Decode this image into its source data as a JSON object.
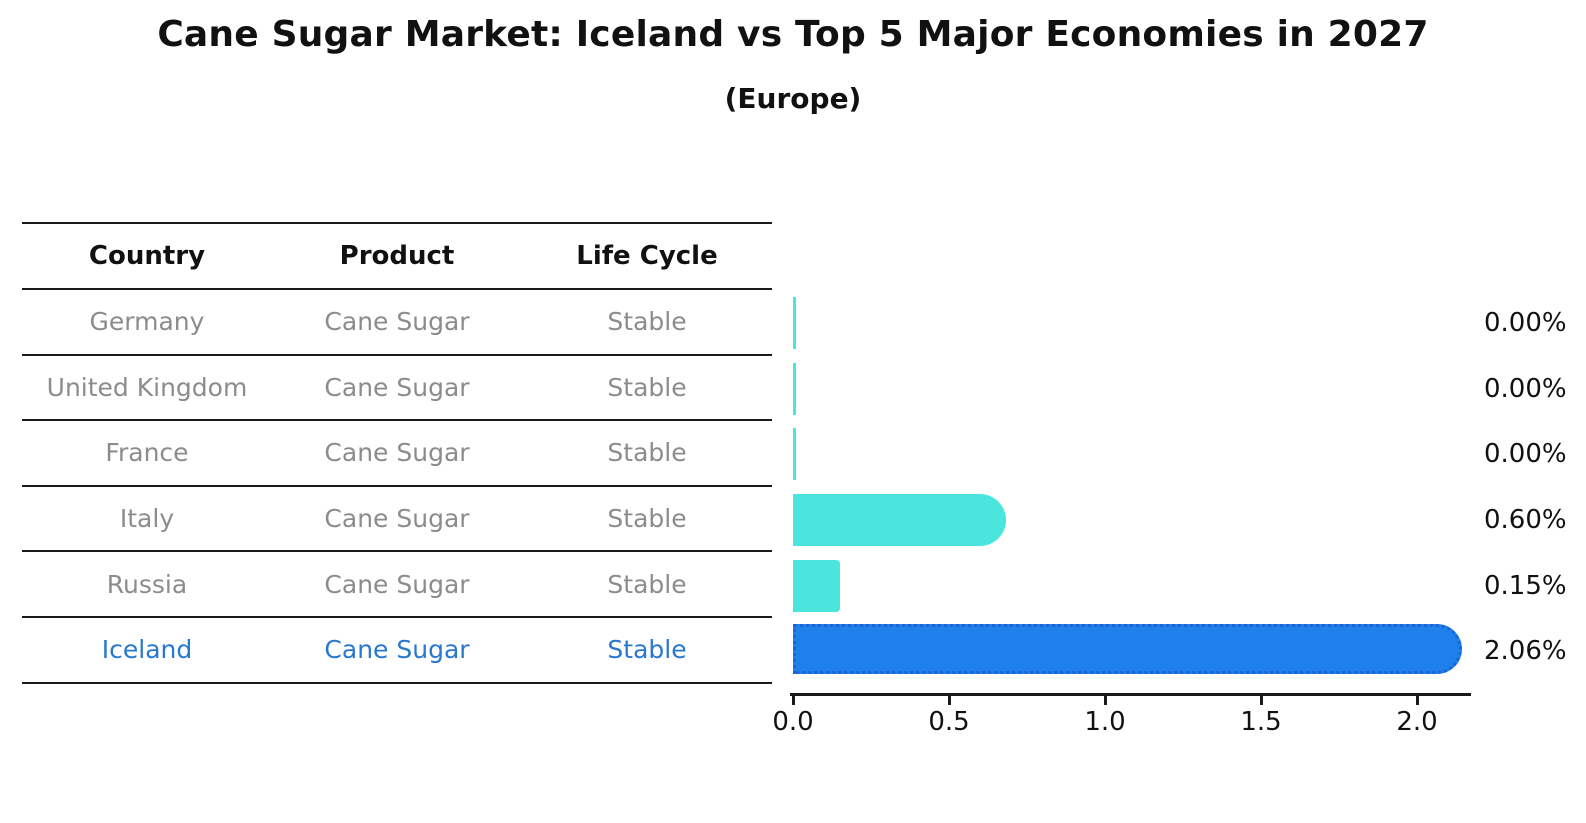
{
  "title": "Cane Sugar Market: Iceland vs Top 5 Major Economies in 2027",
  "subtitle": "(Europe)",
  "table": {
    "headers": [
      "Country",
      "Product",
      "Life Cycle"
    ],
    "rows": [
      {
        "country": "Germany",
        "product": "Cane Sugar",
        "life_cycle": "Stable"
      },
      {
        "country": "United Kingdom",
        "product": "Cane Sugar",
        "life_cycle": "Stable"
      },
      {
        "country": "France",
        "product": "Cane Sugar",
        "life_cycle": "Stable"
      },
      {
        "country": "Italy",
        "product": "Cane Sugar",
        "life_cycle": "Stable"
      },
      {
        "country": "Russia",
        "product": "Cane Sugar",
        "life_cycle": "Stable"
      },
      {
        "country": "Iceland",
        "product": "Cane Sugar",
        "life_cycle": "Stable"
      }
    ]
  },
  "chart_data": {
    "type": "bar",
    "orientation": "horizontal",
    "title": "Cane Sugar Market: Iceland vs Top 5 Major Economies in 2027",
    "subtitle": "(Europe)",
    "categories": [
      "Germany",
      "United Kingdom",
      "France",
      "Italy",
      "Russia",
      "Iceland"
    ],
    "values": [
      0.0,
      0.0,
      0.0,
      0.6,
      0.15,
      2.06
    ],
    "bar_labels": [
      "0.00%",
      "0.00%",
      "0.00%",
      "0.60%",
      "0.15%",
      "2.06%"
    ],
    "xticks": [
      "0.0",
      "0.5",
      "1.0",
      "1.5",
      "2.0"
    ],
    "xlim": [
      0.0,
      2.18
    ],
    "grid": false,
    "legend": "none",
    "highlight_index": 5,
    "colors": {
      "bar_default": "#4AE5DC",
      "bar_highlight": "#1F80EC",
      "bar_highlight_border": "#1A66D4",
      "highlight_text": "#2878CF",
      "text": "#111111",
      "muted_text": "#8C8C8C"
    }
  }
}
